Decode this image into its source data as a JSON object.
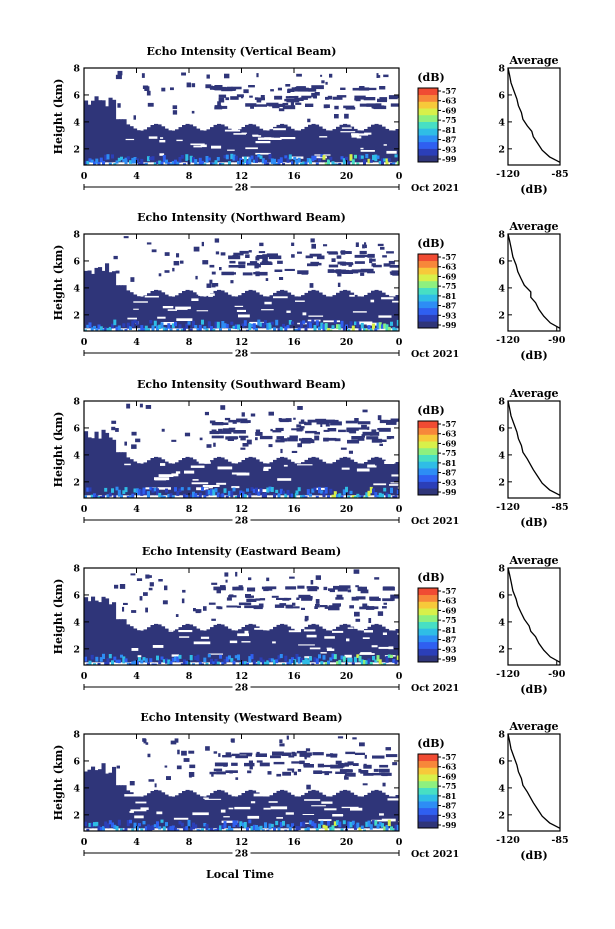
{
  "figure": {
    "common_xlabel": "Local Time",
    "date_label": "Oct 2021",
    "day_label": "28"
  },
  "colorbar": {
    "unit": "(dB)",
    "ticks": [
      "-57",
      "-63",
      "-69",
      "-75",
      "-81",
      "-87",
      "-93",
      "-99"
    ],
    "colors": [
      "#2f3579",
      "#2b3fb8",
      "#2f5ff0",
      "#2d8df5",
      "#2fbde6",
      "#47dfc4",
      "#8ef07f",
      "#d8f04a",
      "#f7c93a",
      "#f7873a",
      "#f04b33"
    ]
  },
  "chart_data": [
    {
      "type": "heatmap",
      "title": "Echo Intensity (Vertical Beam)",
      "ylabel": "Height (km)",
      "xlim": [
        0,
        24
      ],
      "ylim": [
        0.8,
        8
      ],
      "xticks": [
        "0",
        "4",
        "8",
        "12",
        "16",
        "20",
        "0"
      ],
      "yticks": [
        "2",
        "4",
        "6",
        "8"
      ],
      "average": {
        "title": "Average",
        "xlabel": "(dB)",
        "xticks": [
          "-120",
          "-85"
        ],
        "yticks": [
          "2",
          "4",
          "6",
          "8"
        ],
        "xlim": [
          -120,
          -85
        ],
        "profile": [
          [
            -85,
            1.0
          ],
          [
            -92,
            1.4
          ],
          [
            -97,
            1.9
          ],
          [
            -100,
            2.4
          ],
          [
            -103,
            2.9
          ],
          [
            -104,
            3.3
          ],
          [
            -107,
            3.7
          ],
          [
            -110,
            4.2
          ],
          [
            -111,
            4.7
          ],
          [
            -113,
            5.2
          ],
          [
            -114,
            5.7
          ],
          [
            -116,
            6.3
          ],
          [
            -118,
            6.9
          ],
          [
            -119,
            7.5
          ],
          [
            -120,
            8.0
          ]
        ]
      }
    },
    {
      "type": "heatmap",
      "title": "Echo Intensity (Northward Beam)",
      "ylabel": "Height (km)",
      "xlim": [
        0,
        24
      ],
      "ylim": [
        0.8,
        8
      ],
      "xticks": [
        "0",
        "4",
        "8",
        "12",
        "16",
        "20",
        "0"
      ],
      "yticks": [
        "2",
        "4",
        "6",
        "8"
      ],
      "average": {
        "title": "Average",
        "xlabel": "(dB)",
        "xticks": [
          "-120",
          "-90"
        ],
        "yticks": [
          "2",
          "4",
          "6",
          "8"
        ],
        "xlim": [
          -120,
          -88
        ],
        "profile": [
          [
            -88,
            1.0
          ],
          [
            -94,
            1.4
          ],
          [
            -98,
            1.9
          ],
          [
            -101,
            2.4
          ],
          [
            -103,
            2.9
          ],
          [
            -106,
            3.3
          ],
          [
            -106,
            3.7
          ],
          [
            -110,
            4.2
          ],
          [
            -112,
            4.7
          ],
          [
            -114,
            5.2
          ],
          [
            -115,
            5.7
          ],
          [
            -117,
            6.3
          ],
          [
            -118,
            6.9
          ],
          [
            -119,
            7.5
          ],
          [
            -120,
            8.0
          ]
        ]
      }
    },
    {
      "type": "heatmap",
      "title": "Echo Intensity (Southward Beam)",
      "ylabel": "Height (km)",
      "xlim": [
        0,
        24
      ],
      "ylim": [
        0.8,
        8
      ],
      "xticks": [
        "0",
        "4",
        "8",
        "12",
        "16",
        "20",
        "0"
      ],
      "yticks": [
        "2",
        "4",
        "6",
        "8"
      ],
      "average": {
        "title": "Average",
        "xlabel": "(dB)",
        "xticks": [
          "-120",
          "-85"
        ],
        "yticks": [
          "2",
          "4",
          "6",
          "8"
        ],
        "xlim": [
          -120,
          -85
        ],
        "profile": [
          [
            -85,
            1.0
          ],
          [
            -92,
            1.4
          ],
          [
            -97,
            1.9
          ],
          [
            -100,
            2.4
          ],
          [
            -103,
            2.9
          ],
          [
            -105,
            3.3
          ],
          [
            -107,
            3.7
          ],
          [
            -110,
            4.2
          ],
          [
            -111,
            4.7
          ],
          [
            -113,
            5.2
          ],
          [
            -114,
            5.7
          ],
          [
            -116,
            6.3
          ],
          [
            -118,
            6.9
          ],
          [
            -119,
            7.5
          ],
          [
            -120,
            8.0
          ]
        ]
      }
    },
    {
      "type": "heatmap",
      "title": "Echo Intensity (Eastward Beam)",
      "ylabel": "Height (km)",
      "xlim": [
        0,
        24
      ],
      "ylim": [
        0.8,
        8
      ],
      "xticks": [
        "0",
        "4",
        "8",
        "12",
        "16",
        "20",
        "0"
      ],
      "yticks": [
        "2",
        "4",
        "6",
        "8"
      ],
      "average": {
        "title": "Average",
        "xlabel": "(dB)",
        "xticks": [
          "-120",
          "-90"
        ],
        "yticks": [
          "2",
          "4",
          "6",
          "8"
        ],
        "xlim": [
          -120,
          -88
        ],
        "profile": [
          [
            -88,
            1.0
          ],
          [
            -94,
            1.4
          ],
          [
            -98,
            1.9
          ],
          [
            -101,
            2.4
          ],
          [
            -103,
            2.9
          ],
          [
            -106,
            3.3
          ],
          [
            -107,
            3.7
          ],
          [
            -110,
            4.2
          ],
          [
            -112,
            4.7
          ],
          [
            -114,
            5.2
          ],
          [
            -115,
            5.7
          ],
          [
            -117,
            6.3
          ],
          [
            -118,
            6.9
          ],
          [
            -119,
            7.5
          ],
          [
            -120,
            8.0
          ]
        ]
      }
    },
    {
      "type": "heatmap",
      "title": "Echo Intensity (Westward Beam)",
      "ylabel": "Height (km)",
      "xlim": [
        0,
        24
      ],
      "ylim": [
        0.8,
        8
      ],
      "xticks": [
        "0",
        "4",
        "8",
        "12",
        "16",
        "20",
        "0"
      ],
      "yticks": [
        "2",
        "4",
        "6",
        "8"
      ],
      "average": {
        "title": "Average",
        "xlabel": "(dB)",
        "xticks": [
          "-120",
          "-85"
        ],
        "yticks": [
          "2",
          "4",
          "6",
          "8"
        ],
        "xlim": [
          -120,
          -85
        ],
        "profile": [
          [
            -85,
            1.0
          ],
          [
            -92,
            1.4
          ],
          [
            -97,
            1.9
          ],
          [
            -100,
            2.4
          ],
          [
            -103,
            2.9
          ],
          [
            -105,
            3.3
          ],
          [
            -107,
            3.7
          ],
          [
            -110,
            4.2
          ],
          [
            -111,
            4.7
          ],
          [
            -113,
            5.2
          ],
          [
            -114,
            5.7
          ],
          [
            -116,
            6.3
          ],
          [
            -118,
            6.9
          ],
          [
            -119,
            7.5
          ],
          [
            -120,
            8.0
          ]
        ]
      }
    }
  ]
}
